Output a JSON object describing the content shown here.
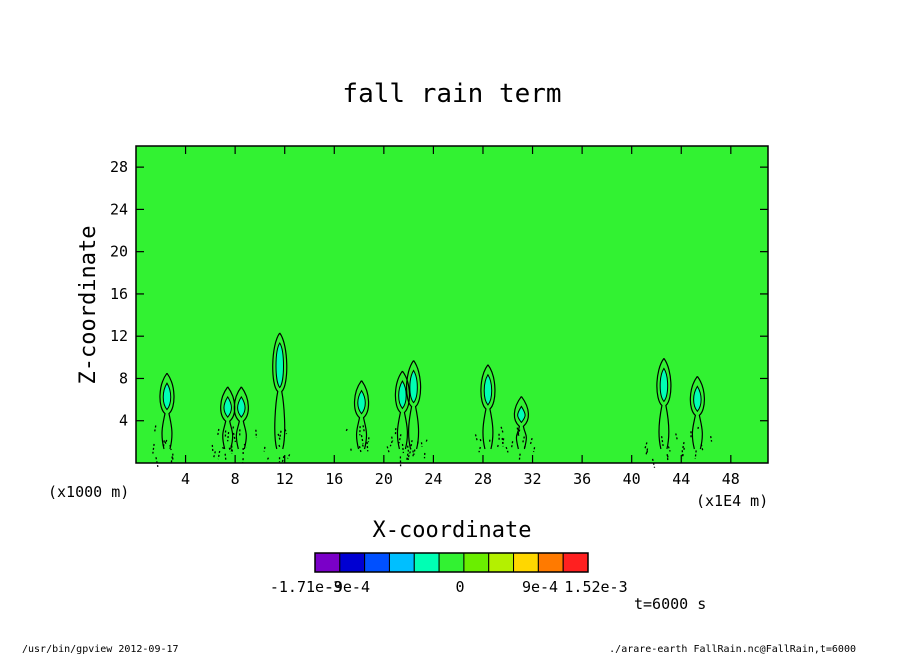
{
  "footer": {
    "left": "/usr/bin/gpview  2012-09-17",
    "right": "./arare-earth_FallRain.nc@FallRain,t=6000"
  },
  "time_label": "t=6000 s",
  "colors": {
    "background_field": "#32f232",
    "contour": "#000000",
    "frame": "#000000"
  },
  "chart_data": {
    "type": "heatmap",
    "title": "fall rain term",
    "xlabel": "X-coordinate",
    "ylabel": "Z-coordinate",
    "x_unit_label": "(x1E4 m)",
    "y_unit_label": "(x1000 m)",
    "xlim": [
      0,
      51
    ],
    "ylim": [
      0,
      30
    ],
    "x_ticks": [
      4,
      8,
      12,
      16,
      20,
      24,
      28,
      32,
      36,
      40,
      44,
      48
    ],
    "y_ticks": [
      4,
      8,
      12,
      16,
      20,
      24,
      28
    ],
    "colorbar": {
      "colors": [
        "#7a00c8",
        "#0000d2",
        "#0050ff",
        "#00bfff",
        "#00ffb4",
        "#32f232",
        "#6aee00",
        "#b4f000",
        "#ffd700",
        "#ff7a00",
        "#ff2020"
      ],
      "labels": [
        "-1.71e-3",
        "-9e-4",
        "0",
        "9e-4",
        "1.52e-3"
      ]
    },
    "cells": [
      {
        "x": 2.5,
        "top": 8.5,
        "base": 0
      },
      {
        "x": 7.4,
        "top": 7.2,
        "base": 0
      },
      {
        "x": 8.5,
        "top": 7.2,
        "base": 0
      },
      {
        "x": 11.6,
        "top": 12.3,
        "base": 0
      },
      {
        "x": 18.2,
        "top": 7.8,
        "base": 0
      },
      {
        "x": 21.5,
        "top": 8.7,
        "base": 0
      },
      {
        "x": 22.4,
        "top": 9.7,
        "base": 0
      },
      {
        "x": 28.4,
        "top": 9.3,
        "base": 0
      },
      {
        "x": 31.1,
        "top": 6.3,
        "base": 0
      },
      {
        "x": 42.6,
        "top": 9.9,
        "base": 0
      },
      {
        "x": 45.3,
        "top": 8.2,
        "base": 0
      }
    ]
  }
}
